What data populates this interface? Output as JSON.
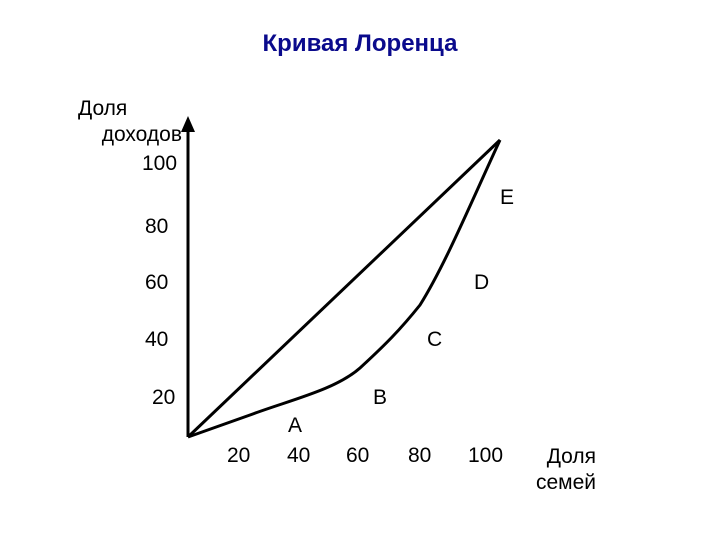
{
  "title": "Кривая Лоренца",
  "y_axis": {
    "label_line1": "Доля",
    "label_line2": "доходов",
    "ticks": [
      "100",
      "80",
      "60",
      "40",
      "20"
    ]
  },
  "x_axis": {
    "label_line1": "Доля",
    "label_line2": "семей",
    "ticks": [
      "20",
      "40",
      "60",
      "80",
      "100"
    ]
  },
  "points": {
    "A": "A",
    "B": "B",
    "C": "C",
    "D": "D",
    "E": "E"
  }
}
